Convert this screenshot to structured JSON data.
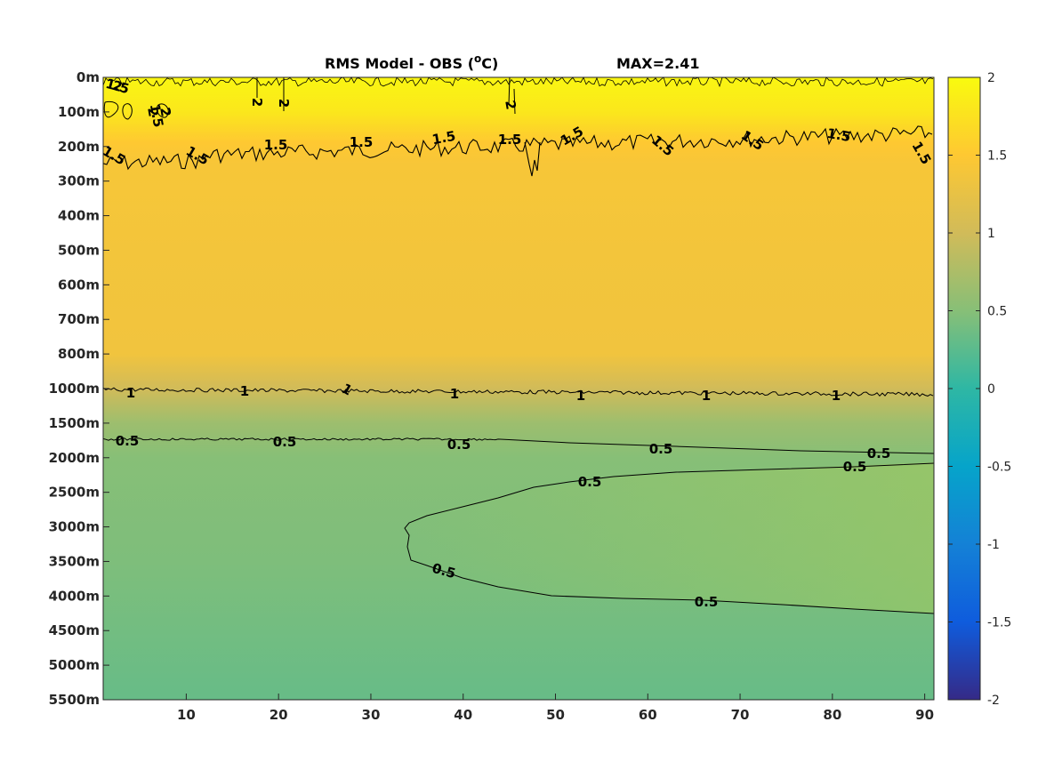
{
  "chart_data": {
    "type": "heatmap",
    "title": "RMS Model - OBS (",
    "title_unit_sup": "o",
    "title_unit_end": "C)",
    "max_annotation": "MAX=2.41",
    "x_ticks": [
      10,
      20,
      30,
      40,
      50,
      60,
      70,
      80,
      90
    ],
    "xlim": [
      1,
      91
    ],
    "y_tick_labels": [
      "0m",
      "100m",
      "200m",
      "300m",
      "400m",
      "500m",
      "600m",
      "700m",
      "800m",
      "1000m",
      "1500m",
      "2000m",
      "2500m",
      "3000m",
      "3500m",
      "4000m",
      "4500m",
      "5000m",
      "5500m"
    ],
    "colorbar": {
      "ticks": [
        "2",
        "1.5",
        "1",
        "0.5",
        "0",
        "-0.5",
        "-1",
        "-1.5",
        "-2"
      ],
      "range": [
        -2,
        2
      ],
      "colormap": "parula"
    },
    "field_profile": [
      {
        "level": 0,
        "value": 1.95
      },
      {
        "level": 1,
        "value": 1.8
      },
      {
        "level": 1.9,
        "value": 1.5
      },
      {
        "level": 2.5,
        "value": 1.42
      },
      {
        "level": 5,
        "value": 1.38
      },
      {
        "level": 8,
        "value": 1.35
      },
      {
        "level": 9,
        "value": 1.0
      },
      {
        "level": 10,
        "value": 0.65
      },
      {
        "level": 11,
        "value": 0.5
      },
      {
        "level": 14,
        "value": 0.45
      },
      {
        "level": 18,
        "value": 0.32
      }
    ],
    "contours": [
      {
        "value": 2,
        "labels": [
          "2",
          "2",
          "2",
          "2",
          "2",
          "2"
        ]
      },
      {
        "value": 1.5,
        "labels": [
          "1.5",
          "1.5",
          "1.5",
          "1.5",
          "1.5",
          "1.5",
          "1.5",
          "1.5",
          "1.5",
          "1.5",
          "1.5",
          "1.5",
          "1.5"
        ]
      },
      {
        "value": 1,
        "labels": [
          "1",
          "1",
          "1",
          "1",
          "1",
          "1",
          "1"
        ]
      },
      {
        "value": 0.5,
        "labels": [
          "0.5",
          "0.5",
          "0.5",
          "0.5",
          "0.5",
          "0.5",
          "0.5",
          "0.5",
          "0.5"
        ]
      }
    ]
  },
  "colors": {
    "contour": "#000000",
    "parula": [
      "#352a87",
      "#0f5cdd",
      "#1481d6",
      "#06a4ca",
      "#2eb7a4",
      "#87bf77",
      "#d1bb59",
      "#fec832",
      "#f9fb0e"
    ]
  }
}
